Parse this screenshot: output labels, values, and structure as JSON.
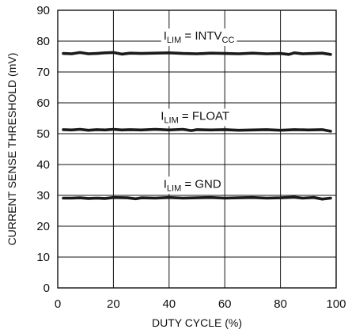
{
  "chart_data": {
    "type": "line",
    "xlabel": "DUTY CYCLE (%)",
    "ylabel": "CURRENT SENSE THRESHOLD (mV)",
    "xlim": [
      0,
      100
    ],
    "ylim": [
      0,
      90
    ],
    "x_ticks": [
      "0",
      "20",
      "40",
      "60",
      "80",
      "100"
    ],
    "y_ticks": [
      "0",
      "10",
      "20",
      "30",
      "40",
      "50",
      "60",
      "70",
      "80",
      "90"
    ],
    "grid": true,
    "legend": "none",
    "series": [
      {
        "name": "I_LIM = INTV_CC",
        "label": {
          "main": "I",
          "sub1": "LIM",
          "mid": " = INTV",
          "sub2": "CC"
        },
        "label_anchor": {
          "x": 38,
          "y": 80.5
        },
        "x": [
          2,
          5,
          8,
          11,
          14,
          17,
          20,
          23,
          26,
          30,
          35,
          40,
          45,
          50,
          55,
          60,
          65,
          70,
          75,
          80,
          83,
          85,
          88,
          92,
          95,
          98
        ],
        "values": [
          76.0,
          75.9,
          76.3,
          75.9,
          76.0,
          76.2,
          76.3,
          75.8,
          76.1,
          76.0,
          76.1,
          76.2,
          76.0,
          75.9,
          76.1,
          76.0,
          75.9,
          76.1,
          75.9,
          76.0,
          75.7,
          76.2,
          75.9,
          76.0,
          76.1,
          75.7
        ]
      },
      {
        "name": "I_LIM = FLOAT",
        "label": {
          "main": "I",
          "sub1": "LIM",
          "mid": " = FLOAT",
          "sub2": ""
        },
        "label_anchor": {
          "x": 37,
          "y": 54.5
        },
        "x": [
          2,
          5,
          8,
          11,
          14,
          17,
          20,
          23,
          26,
          30,
          35,
          40,
          45,
          48,
          50,
          55,
          60,
          65,
          70,
          75,
          80,
          85,
          90,
          95,
          98
        ],
        "values": [
          51.3,
          51.2,
          51.4,
          51.1,
          51.3,
          51.2,
          51.4,
          51.2,
          51.3,
          51.2,
          51.4,
          51.2,
          51.4,
          51.0,
          51.3,
          51.2,
          51.3,
          51.1,
          51.2,
          51.3,
          51.1,
          51.3,
          51.2,
          51.3,
          50.8
        ]
      },
      {
        "name": "I_LIM = GND",
        "label": {
          "main": "I",
          "sub1": "LIM",
          "mid": " = GND",
          "sub2": ""
        },
        "label_anchor": {
          "x": 38,
          "y": 32.5
        },
        "x": [
          2,
          5,
          8,
          11,
          14,
          17,
          20,
          25,
          28,
          30,
          35,
          40,
          45,
          50,
          55,
          60,
          65,
          70,
          75,
          80,
          85,
          88,
          92,
          95,
          98
        ],
        "values": [
          29.1,
          29.1,
          29.2,
          29.0,
          29.1,
          29.0,
          29.3,
          29.2,
          28.9,
          29.2,
          29.1,
          29.3,
          29.1,
          29.2,
          29.3,
          29.1,
          29.2,
          29.3,
          29.1,
          29.2,
          29.4,
          29.1,
          29.3,
          28.8,
          29.1
        ]
      }
    ]
  }
}
